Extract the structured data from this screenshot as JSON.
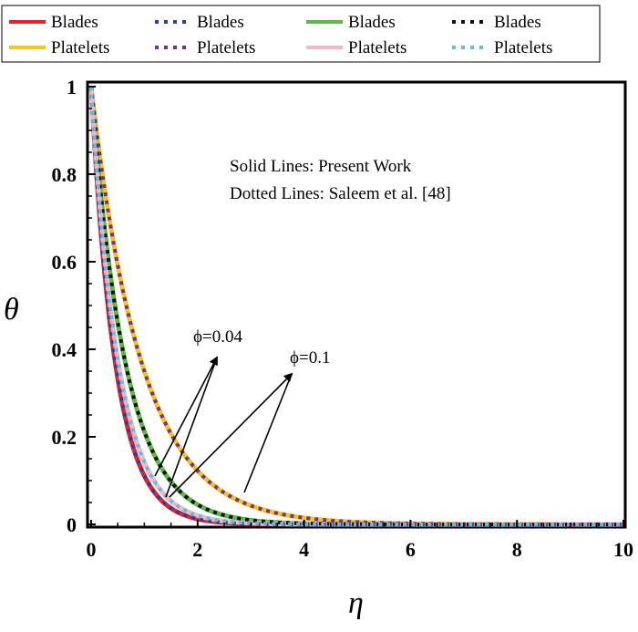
{
  "chart_data": {
    "type": "line",
    "xlabel": "η",
    "ylabel": "θ",
    "xlim": [
      0,
      10
    ],
    "ylim": [
      0,
      1
    ],
    "xticks": [
      0,
      2,
      4,
      6,
      8,
      10
    ],
    "yticks": [
      0,
      0.2,
      0.4,
      0.6,
      0.8,
      1
    ],
    "legend_position": "top, two rows",
    "annotations": [
      "Solid Lines: Present Work",
      "Dotted Lines: Saleem et al. [48]"
    ],
    "phi_labels": [
      "ϕ=0.04",
      "ϕ=0.1"
    ],
    "series": [
      {
        "name": "Blades",
        "style": "solid",
        "color": "#e8202a",
        "decay": 2.2
      },
      {
        "name": "Platelets",
        "style": "solid",
        "color": "#f5c518",
        "decay": 1.05
      },
      {
        "name": "Blades",
        "style": "dotted",
        "color": "#2e3f9e",
        "decay": 2.2
      },
      {
        "name": "Platelets",
        "style": "dotted",
        "color": "#7b2d8e",
        "decay": 1.05
      },
      {
        "name": "Blades",
        "style": "solid",
        "color": "#5cb946",
        "decay": 1.55
      },
      {
        "name": "Platelets",
        "style": "solid",
        "color": "#f4b6c2",
        "decay": 1.95
      },
      {
        "name": "Blades",
        "style": "dotted",
        "color": "#111111",
        "decay": 1.55
      },
      {
        "name": "Platelets",
        "style": "dotted",
        "color": "#5bc0de",
        "decay": 1.95
      }
    ]
  }
}
